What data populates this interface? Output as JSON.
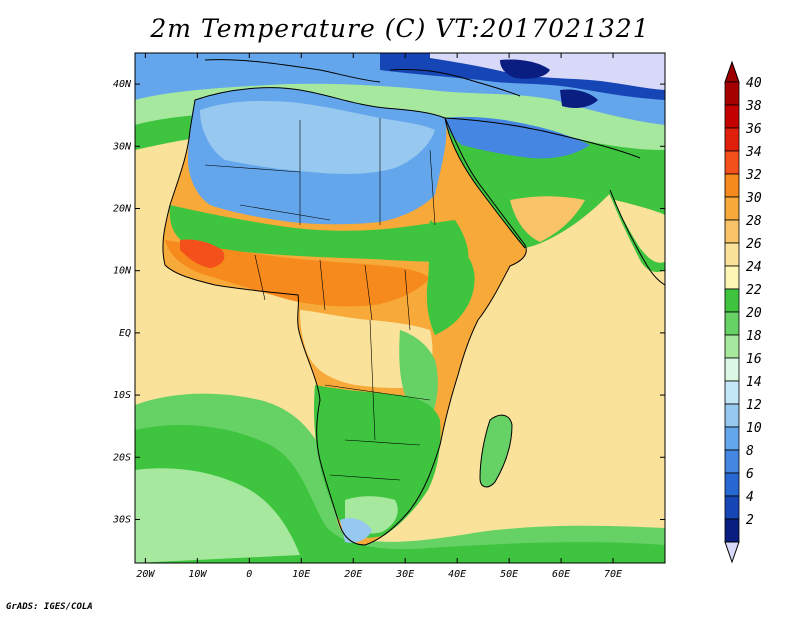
{
  "title": "2m Temperature (C) VT:2017021321",
  "credit": "GrADS: IGES/COLA",
  "map": {
    "lon_range": [
      -22,
      80
    ],
    "lat_range": [
      -37,
      45
    ],
    "x_ticks": [
      {
        "lon": -20,
        "label": "20W"
      },
      {
        "lon": -10,
        "label": "10W"
      },
      {
        "lon": 0,
        "label": "0"
      },
      {
        "lon": 10,
        "label": "10E"
      },
      {
        "lon": 20,
        "label": "20E"
      },
      {
        "lon": 30,
        "label": "30E"
      },
      {
        "lon": 40,
        "label": "40E"
      },
      {
        "lon": 50,
        "label": "50E"
      },
      {
        "lon": 60,
        "label": "60E"
      },
      {
        "lon": 70,
        "label": "70E"
      }
    ],
    "y_ticks": [
      {
        "lat": 40,
        "label": "40N"
      },
      {
        "lat": 30,
        "label": "30N"
      },
      {
        "lat": 20,
        "label": "20N"
      },
      {
        "lat": 10,
        "label": "10N"
      },
      {
        "lat": 0,
        "label": "EQ"
      },
      {
        "lat": -10,
        "label": "10S"
      },
      {
        "lat": -20,
        "label": "20S"
      },
      {
        "lat": -30,
        "label": "30S"
      }
    ]
  },
  "colorbar": {
    "labels": [
      "40",
      "38",
      "36",
      "34",
      "32",
      "30",
      "28",
      "26",
      "24",
      "22",
      "20",
      "18",
      "16",
      "14",
      "12",
      "10",
      "8",
      "6",
      "4",
      "2"
    ],
    "colors": [
      "#a50000",
      "#c40000",
      "#e0200b",
      "#f4501c",
      "#f68a1c",
      "#f7aa3a",
      "#f9c36a",
      "#fbe29a",
      "#fdf6b4",
      "#3ec43e",
      "#66d266",
      "#a6e89e",
      "#dcf8e4",
      "#c2e6f6",
      "#96c8f0",
      "#64a6ec",
      "#4486e2",
      "#2868d2",
      "#1646b6",
      "#0a1e82"
    ],
    "top_color": "#9e0000",
    "bottom_color": "#d8d8f8"
  }
}
